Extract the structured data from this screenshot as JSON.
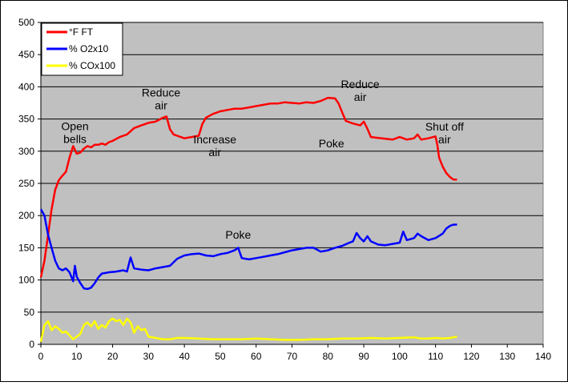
{
  "chart_data": {
    "type": "line",
    "title": "",
    "xlabel": "",
    "ylabel": "",
    "xlim": [
      0,
      140
    ],
    "ylim": [
      0,
      500
    ],
    "xticks": [
      0,
      10,
      20,
      30,
      40,
      50,
      60,
      70,
      80,
      90,
      100,
      110,
      120,
      130,
      140
    ],
    "yticks": [
      0,
      50,
      100,
      150,
      200,
      250,
      300,
      350,
      400,
      450,
      500
    ],
    "grid": "horizontal",
    "plot_background": "#c0c0c0",
    "legend_position": "top-left",
    "series": [
      {
        "name": "°F FT",
        "color": "#ff0000",
        "points": [
          [
            0,
            104
          ],
          [
            1,
            130
          ],
          [
            2,
            170
          ],
          [
            3,
            210
          ],
          [
            4,
            240
          ],
          [
            5,
            255
          ],
          [
            6,
            262
          ],
          [
            7,
            268
          ],
          [
            8,
            290
          ],
          [
            9,
            308
          ],
          [
            10,
            296
          ],
          [
            11,
            298
          ],
          [
            12,
            304
          ],
          [
            13,
            308
          ],
          [
            14,
            306
          ],
          [
            15,
            310
          ],
          [
            16,
            310
          ],
          [
            17,
            312
          ],
          [
            18,
            310
          ],
          [
            19,
            314
          ],
          [
            20,
            316
          ],
          [
            22,
            322
          ],
          [
            24,
            326
          ],
          [
            26,
            336
          ],
          [
            28,
            340
          ],
          [
            30,
            344
          ],
          [
            32,
            346
          ],
          [
            34,
            352
          ],
          [
            35,
            354
          ],
          [
            36,
            334
          ],
          [
            37,
            326
          ],
          [
            38,
            324
          ],
          [
            40,
            320
          ],
          [
            42,
            322
          ],
          [
            44,
            324
          ],
          [
            45,
            342
          ],
          [
            46,
            352
          ],
          [
            48,
            358
          ],
          [
            50,
            362
          ],
          [
            52,
            364
          ],
          [
            54,
            366
          ],
          [
            56,
            366
          ],
          [
            58,
            368
          ],
          [
            60,
            370
          ],
          [
            62,
            372
          ],
          [
            64,
            374
          ],
          [
            66,
            374
          ],
          [
            68,
            376
          ],
          [
            70,
            375
          ],
          [
            72,
            374
          ],
          [
            74,
            376
          ],
          [
            76,
            375
          ],
          [
            78,
            378
          ],
          [
            80,
            383
          ],
          [
            82,
            382
          ],
          [
            83,
            374
          ],
          [
            84,
            360
          ],
          [
            85,
            347
          ],
          [
            87,
            343
          ],
          [
            89,
            340
          ],
          [
            90,
            346
          ],
          [
            91,
            335
          ],
          [
            92,
            322
          ],
          [
            95,
            320
          ],
          [
            98,
            318
          ],
          [
            100,
            322
          ],
          [
            102,
            318
          ],
          [
            104,
            320
          ],
          [
            105,
            326
          ],
          [
            106,
            318
          ],
          [
            108,
            320
          ],
          [
            110,
            323
          ],
          [
            110.5,
            310
          ],
          [
            111,
            290
          ],
          [
            112,
            276
          ],
          [
            113,
            266
          ],
          [
            114,
            260
          ],
          [
            115,
            256
          ],
          [
            116,
            256
          ]
        ]
      },
      {
        "name": "% O2x10",
        "color": "#0000ff",
        "points": [
          [
            0,
            210
          ],
          [
            1,
            200
          ],
          [
            2,
            170
          ],
          [
            3,
            150
          ],
          [
            4,
            130
          ],
          [
            5,
            118
          ],
          [
            6,
            115
          ],
          [
            7,
            118
          ],
          [
            8,
            112
          ],
          [
            9,
            98
          ],
          [
            9.5,
            122
          ],
          [
            10,
            105
          ],
          [
            11,
            95
          ],
          [
            12,
            87
          ],
          [
            13,
            86
          ],
          [
            14,
            88
          ],
          [
            15,
            95
          ],
          [
            16,
            104
          ],
          [
            17,
            110
          ],
          [
            19,
            112
          ],
          [
            21,
            113
          ],
          [
            23,
            115
          ],
          [
            24,
            113
          ],
          [
            25,
            135
          ],
          [
            26,
            118
          ],
          [
            28,
            116
          ],
          [
            30,
            115
          ],
          [
            32,
            118
          ],
          [
            34,
            120
          ],
          [
            36,
            122
          ],
          [
            38,
            133
          ],
          [
            40,
            138
          ],
          [
            42,
            140
          ],
          [
            44,
            141
          ],
          [
            46,
            138
          ],
          [
            48,
            137
          ],
          [
            50,
            140
          ],
          [
            52,
            142
          ],
          [
            54,
            146
          ],
          [
            55,
            150
          ],
          [
            56,
            134
          ],
          [
            58,
            132
          ],
          [
            60,
            134
          ],
          [
            62,
            136
          ],
          [
            64,
            138
          ],
          [
            66,
            140
          ],
          [
            68,
            143
          ],
          [
            70,
            146
          ],
          [
            72,
            148
          ],
          [
            74,
            150
          ],
          [
            76,
            150
          ],
          [
            78,
            144
          ],
          [
            80,
            146
          ],
          [
            82,
            150
          ],
          [
            84,
            153
          ],
          [
            86,
            158
          ],
          [
            87,
            160
          ],
          [
            88,
            173
          ],
          [
            89,
            165
          ],
          [
            90,
            160
          ],
          [
            91,
            168
          ],
          [
            92,
            160
          ],
          [
            94,
            155
          ],
          [
            96,
            154
          ],
          [
            98,
            156
          ],
          [
            100,
            158
          ],
          [
            101,
            175
          ],
          [
            102,
            162
          ],
          [
            104,
            165
          ],
          [
            105,
            172
          ],
          [
            106,
            168
          ],
          [
            108,
            162
          ],
          [
            110,
            165
          ],
          [
            112,
            172
          ],
          [
            113,
            180
          ],
          [
            114,
            184
          ],
          [
            115,
            186
          ],
          [
            116,
            186
          ]
        ]
      },
      {
        "name": "% COx100",
        "color": "#ffff00",
        "points": [
          [
            0,
            4
          ],
          [
            1,
            30
          ],
          [
            2,
            36
          ],
          [
            3,
            22
          ],
          [
            4,
            28
          ],
          [
            5,
            24
          ],
          [
            6,
            18
          ],
          [
            7,
            20
          ],
          [
            8,
            14
          ],
          [
            9,
            8
          ],
          [
            10,
            12
          ],
          [
            11,
            16
          ],
          [
            12,
            30
          ],
          [
            13,
            34
          ],
          [
            14,
            28
          ],
          [
            15,
            36
          ],
          [
            16,
            24
          ],
          [
            17,
            30
          ],
          [
            18,
            26
          ],
          [
            19,
            36
          ],
          [
            20,
            40
          ],
          [
            21,
            36
          ],
          [
            22,
            38
          ],
          [
            23,
            30
          ],
          [
            24,
            40
          ],
          [
            25,
            34
          ],
          [
            26,
            18
          ],
          [
            27,
            28
          ],
          [
            28,
            22
          ],
          [
            29,
            24
          ],
          [
            30,
            12
          ],
          [
            32,
            10
          ],
          [
            34,
            8
          ],
          [
            36,
            8
          ],
          [
            38,
            10
          ],
          [
            40,
            10
          ],
          [
            44,
            9
          ],
          [
            48,
            8
          ],
          [
            52,
            8
          ],
          [
            56,
            8
          ],
          [
            60,
            9
          ],
          [
            64,
            8
          ],
          [
            68,
            7
          ],
          [
            72,
            7
          ],
          [
            76,
            8
          ],
          [
            80,
            8
          ],
          [
            84,
            9
          ],
          [
            88,
            9
          ],
          [
            92,
            10
          ],
          [
            96,
            9
          ],
          [
            100,
            10
          ],
          [
            104,
            11
          ],
          [
            106,
            9
          ],
          [
            108,
            9
          ],
          [
            110,
            10
          ],
          [
            112,
            9
          ],
          [
            114,
            10
          ],
          [
            116,
            12
          ]
        ]
      }
    ],
    "annotations": [
      {
        "text": "Open\nbells",
        "x": 9.5,
        "y": 333
      },
      {
        "text": "Reduce\nair",
        "x": 33.5,
        "y": 385
      },
      {
        "text": "Increase\nair",
        "x": 48.5,
        "y": 312
      },
      {
        "text": "Poke",
        "x": 55,
        "y": 164
      },
      {
        "text": "Poke",
        "x": 81,
        "y": 306
      },
      {
        "text": "Reduce\nair",
        "x": 89,
        "y": 398
      },
      {
        "text": "Shut off\nair",
        "x": 112.5,
        "y": 332
      }
    ]
  }
}
